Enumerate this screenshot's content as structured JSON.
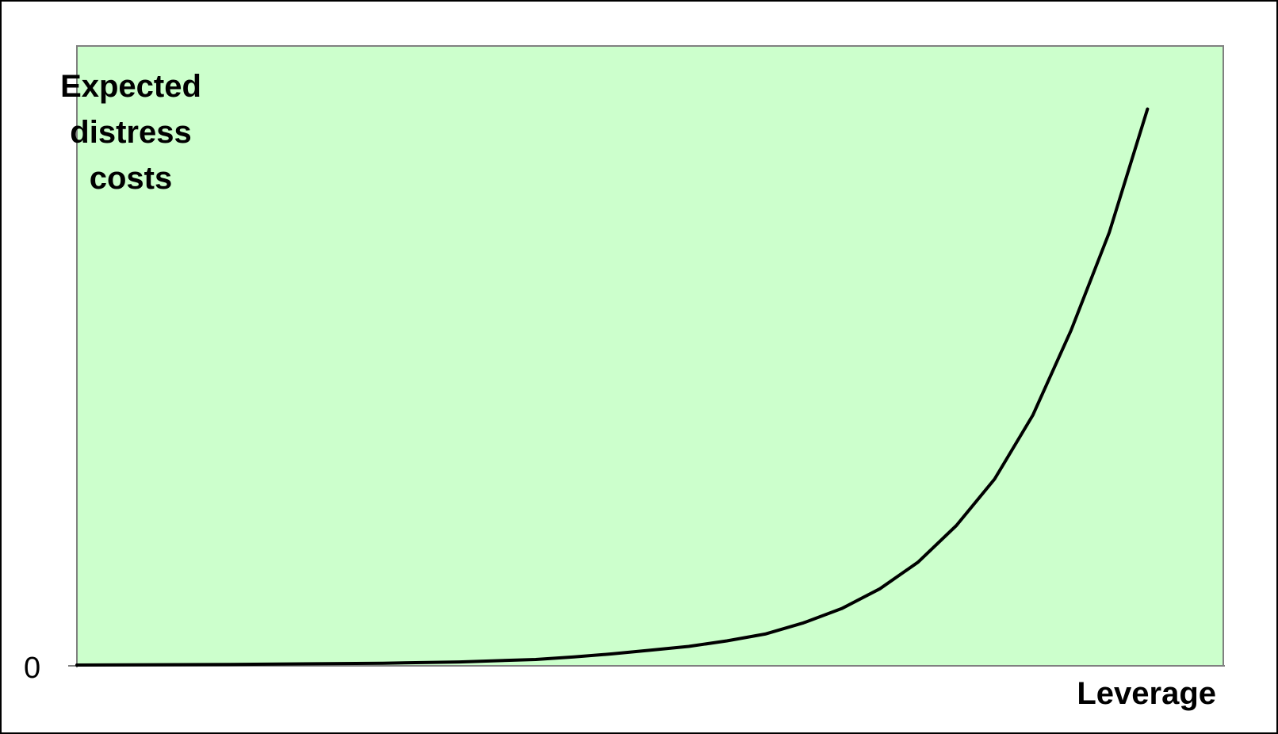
{
  "chart_data": {
    "type": "line",
    "title": "",
    "ylabel": "Expected\ndistress\ncosts",
    "xlabel": "Leverage",
    "y_tick_labels": [
      "0"
    ],
    "background_color": "#ccffcc",
    "line_color": "#000000",
    "grid": false,
    "legend": "none",
    "xlim": [
      0,
      29
    ],
    "ylim": [
      0,
      100
    ],
    "series": [
      {
        "values_x": [
          0,
          4,
          8,
          10,
          12,
          13,
          14,
          15,
          16,
          17,
          18,
          19,
          20,
          21,
          22,
          23,
          24,
          25,
          26,
          27,
          28
        ],
        "values_y": [
          0,
          0.1,
          0.3,
          0.5,
          0.9,
          1.3,
          1.8,
          2.4,
          3.0,
          3.9,
          5.0,
          6.8,
          9.1,
          12.3,
          16.6,
          22.5,
          30.0,
          40.3,
          54.0,
          69.8,
          89.7
        ]
      }
    ]
  }
}
